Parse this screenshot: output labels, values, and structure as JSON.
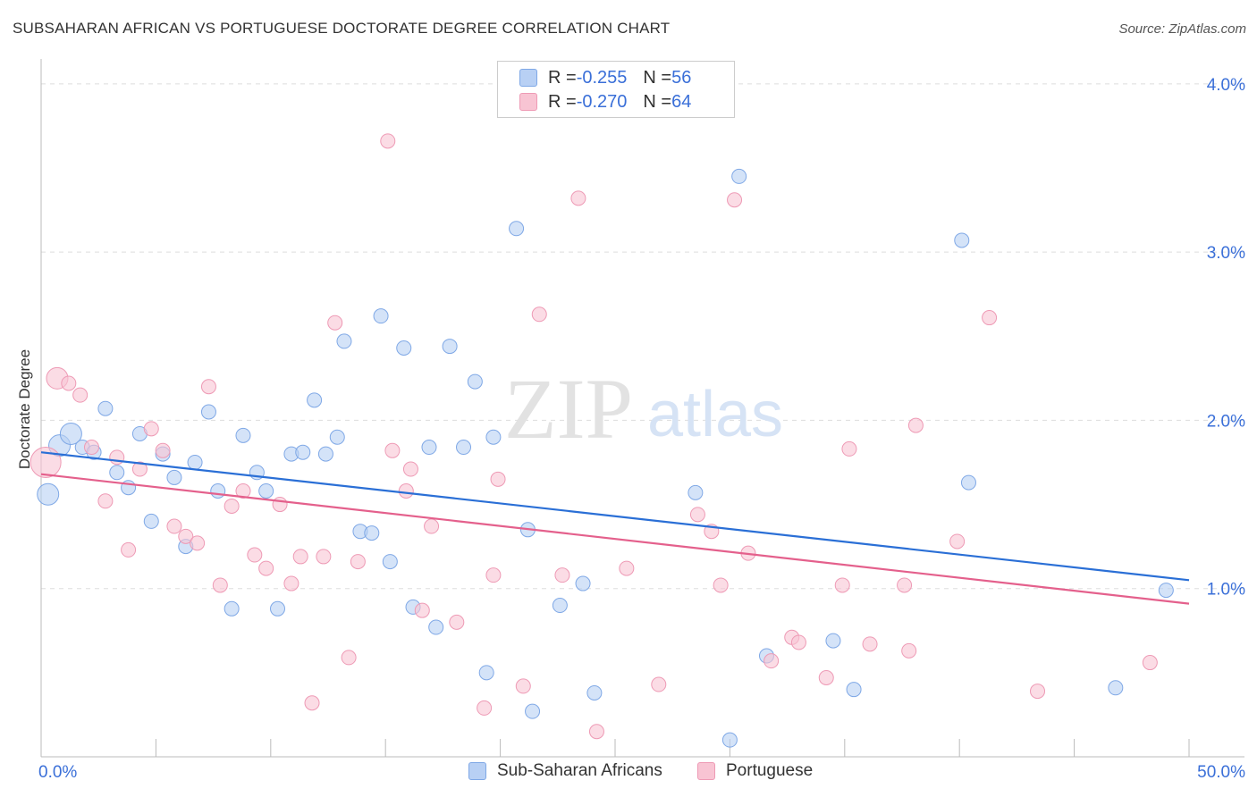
{
  "header": {
    "title": "SUBSAHARAN AFRICAN VS PORTUGUESE DOCTORATE DEGREE CORRELATION CHART",
    "source": "Source: ZipAtlas.com"
  },
  "watermark": {
    "zip": "ZIP",
    "atlas": "atlas"
  },
  "legend_top": {
    "series": [
      {
        "r_label": "R = ",
        "r_value": "-0.255",
        "n_label": "N = ",
        "n_value": "56"
      },
      {
        "r_label": "R = ",
        "r_value": "-0.270",
        "n_label": "N = ",
        "n_value": "64"
      }
    ]
  },
  "legend_bottom": {
    "items": [
      "Sub-Saharan Africans",
      "Portuguese"
    ]
  },
  "colors": {
    "blue_fill": "#b8d0f4",
    "blue_stroke": "#7fa8e6",
    "blue_line": "#2a6fd6",
    "pink_fill": "#f8c4d3",
    "pink_stroke": "#ee9ab5",
    "pink_line": "#e4608c",
    "tick_label": "#3a6fd8",
    "grid": "#dddddd"
  },
  "chart_data": {
    "type": "scatter",
    "title": "SUBSAHARAN AFRICAN VS PORTUGUESE DOCTORATE DEGREE CORRELATION CHART",
    "xlabel": "",
    "ylabel": "Doctorate Degree",
    "xlim": [
      0,
      50
    ],
    "ylim": [
      0,
      4.1
    ],
    "x_tick_labels": [
      {
        "value": 0,
        "label": "0.0%"
      },
      {
        "value": 50,
        "label": "50.0%"
      }
    ],
    "y_tick_labels": [
      {
        "value": 1,
        "label": "1.0%"
      },
      {
        "value": 2,
        "label": "2.0%"
      },
      {
        "value": 3,
        "label": "3.0%"
      },
      {
        "value": 4,
        "label": "4.0%"
      }
    ],
    "series": [
      {
        "name": "Sub-Saharan Africans",
        "color": "#b8d0f4",
        "trend": {
          "x": [
            0,
            50
          ],
          "y": [
            1.81,
            1.05
          ]
        },
        "points": [
          {
            "x": 0.3,
            "y": 1.56,
            "s": 2
          },
          {
            "x": 0.8,
            "y": 1.85,
            "s": 2
          },
          {
            "x": 1.3,
            "y": 1.92,
            "s": 2
          },
          {
            "x": 1.8,
            "y": 1.84,
            "s": 1
          },
          {
            "x": 2.3,
            "y": 1.81,
            "s": 1
          },
          {
            "x": 2.8,
            "y": 2.07,
            "s": 1
          },
          {
            "x": 3.3,
            "y": 1.69,
            "s": 1
          },
          {
            "x": 3.8,
            "y": 1.6,
            "s": 1
          },
          {
            "x": 4.3,
            "y": 1.92,
            "s": 1
          },
          {
            "x": 4.8,
            "y": 1.4,
            "s": 1
          },
          {
            "x": 5.3,
            "y": 1.8,
            "s": 1
          },
          {
            "x": 5.8,
            "y": 1.66,
            "s": 1
          },
          {
            "x": 6.3,
            "y": 1.25,
            "s": 1
          },
          {
            "x": 6.7,
            "y": 1.75,
            "s": 1
          },
          {
            "x": 7.3,
            "y": 2.05,
            "s": 1
          },
          {
            "x": 7.7,
            "y": 1.58,
            "s": 1
          },
          {
            "x": 8.3,
            "y": 0.88,
            "s": 1
          },
          {
            "x": 8.8,
            "y": 1.91,
            "s": 1
          },
          {
            "x": 9.4,
            "y": 1.69,
            "s": 1
          },
          {
            "x": 9.8,
            "y": 1.58,
            "s": 1
          },
          {
            "x": 10.3,
            "y": 0.88,
            "s": 1
          },
          {
            "x": 10.9,
            "y": 1.8,
            "s": 1
          },
          {
            "x": 11.4,
            "y": 1.81,
            "s": 1
          },
          {
            "x": 11.9,
            "y": 2.12,
            "s": 1
          },
          {
            "x": 12.4,
            "y": 1.8,
            "s": 1
          },
          {
            "x": 12.9,
            "y": 1.9,
            "s": 1
          },
          {
            "x": 13.2,
            "y": 2.47,
            "s": 1
          },
          {
            "x": 13.9,
            "y": 1.34,
            "s": 1
          },
          {
            "x": 14.4,
            "y": 1.33,
            "s": 1
          },
          {
            "x": 14.8,
            "y": 2.62,
            "s": 1
          },
          {
            "x": 15.2,
            "y": 1.16,
            "s": 1
          },
          {
            "x": 15.8,
            "y": 2.43,
            "s": 1
          },
          {
            "x": 16.2,
            "y": 0.89,
            "s": 1
          },
          {
            "x": 16.9,
            "y": 1.84,
            "s": 1
          },
          {
            "x": 17.2,
            "y": 0.77,
            "s": 1
          },
          {
            "x": 17.8,
            "y": 2.44,
            "s": 1
          },
          {
            "x": 18.4,
            "y": 1.84,
            "s": 1
          },
          {
            "x": 18.9,
            "y": 2.23,
            "s": 1
          },
          {
            "x": 19.4,
            "y": 0.5,
            "s": 1
          },
          {
            "x": 19.7,
            "y": 1.9,
            "s": 1
          },
          {
            "x": 20.7,
            "y": 3.14,
            "s": 1
          },
          {
            "x": 21.2,
            "y": 1.35,
            "s": 1
          },
          {
            "x": 21.4,
            "y": 0.27,
            "s": 1
          },
          {
            "x": 22.6,
            "y": 0.9,
            "s": 1
          },
          {
            "x": 24.1,
            "y": 0.38,
            "s": 1
          },
          {
            "x": 23.6,
            "y": 1.03,
            "s": 1
          },
          {
            "x": 28.5,
            "y": 1.57,
            "s": 1
          },
          {
            "x": 30.0,
            "y": 0.1,
            "s": 1
          },
          {
            "x": 30.4,
            "y": 3.45,
            "s": 1
          },
          {
            "x": 31.6,
            "y": 0.6,
            "s": 1
          },
          {
            "x": 34.5,
            "y": 0.69,
            "s": 1
          },
          {
            "x": 35.4,
            "y": 0.4,
            "s": 1
          },
          {
            "x": 40.1,
            "y": 3.07,
            "s": 1
          },
          {
            "x": 40.4,
            "y": 1.63,
            "s": 1
          },
          {
            "x": 46.8,
            "y": 0.41,
            "s": 1
          },
          {
            "x": 49.0,
            "y": 0.99,
            "s": 1
          }
        ]
      },
      {
        "name": "Portuguese",
        "color": "#f8c4d3",
        "trend": {
          "x": [
            0,
            50
          ],
          "y": [
            1.68,
            0.91
          ]
        },
        "points": [
          {
            "x": 0.2,
            "y": 1.75,
            "s": 3
          },
          {
            "x": 0.7,
            "y": 2.25,
            "s": 2
          },
          {
            "x": 1.2,
            "y": 2.22,
            "s": 1
          },
          {
            "x": 1.7,
            "y": 2.15,
            "s": 1
          },
          {
            "x": 2.2,
            "y": 1.84,
            "s": 1
          },
          {
            "x": 2.8,
            "y": 1.52,
            "s": 1
          },
          {
            "x": 3.3,
            "y": 1.78,
            "s": 1
          },
          {
            "x": 3.8,
            "y": 1.23,
            "s": 1
          },
          {
            "x": 4.3,
            "y": 1.71,
            "s": 1
          },
          {
            "x": 4.8,
            "y": 1.95,
            "s": 1
          },
          {
            "x": 5.3,
            "y": 1.82,
            "s": 1
          },
          {
            "x": 5.8,
            "y": 1.37,
            "s": 1
          },
          {
            "x": 6.3,
            "y": 1.31,
            "s": 1
          },
          {
            "x": 6.8,
            "y": 1.27,
            "s": 1
          },
          {
            "x": 7.3,
            "y": 2.2,
            "s": 1
          },
          {
            "x": 7.8,
            "y": 1.02,
            "s": 1
          },
          {
            "x": 8.3,
            "y": 1.49,
            "s": 1
          },
          {
            "x": 8.8,
            "y": 1.58,
            "s": 1
          },
          {
            "x": 9.3,
            "y": 1.2,
            "s": 1
          },
          {
            "x": 9.8,
            "y": 1.12,
            "s": 1
          },
          {
            "x": 10.4,
            "y": 1.5,
            "s": 1
          },
          {
            "x": 10.9,
            "y": 1.03,
            "s": 1
          },
          {
            "x": 11.3,
            "y": 1.19,
            "s": 1
          },
          {
            "x": 11.8,
            "y": 0.32,
            "s": 1
          },
          {
            "x": 12.3,
            "y": 1.19,
            "s": 1
          },
          {
            "x": 12.8,
            "y": 2.58,
            "s": 1
          },
          {
            "x": 13.4,
            "y": 0.59,
            "s": 1
          },
          {
            "x": 13.8,
            "y": 1.16,
            "s": 1
          },
          {
            "x": 15.1,
            "y": 3.66,
            "s": 1
          },
          {
            "x": 15.3,
            "y": 1.82,
            "s": 1
          },
          {
            "x": 15.9,
            "y": 1.58,
            "s": 1
          },
          {
            "x": 16.1,
            "y": 1.71,
            "s": 1
          },
          {
            "x": 16.6,
            "y": 0.87,
            "s": 1
          },
          {
            "x": 17.0,
            "y": 1.37,
            "s": 1
          },
          {
            "x": 18.1,
            "y": 0.8,
            "s": 1
          },
          {
            "x": 19.3,
            "y": 0.29,
            "s": 1
          },
          {
            "x": 19.7,
            "y": 1.08,
            "s": 1
          },
          {
            "x": 19.9,
            "y": 1.65,
            "s": 1
          },
          {
            "x": 21.0,
            "y": 0.42,
            "s": 1
          },
          {
            "x": 21.7,
            "y": 2.63,
            "s": 1
          },
          {
            "x": 22.7,
            "y": 1.08,
            "s": 1
          },
          {
            "x": 23.4,
            "y": 3.32,
            "s": 1
          },
          {
            "x": 24.2,
            "y": 0.15,
            "s": 1
          },
          {
            "x": 25.5,
            "y": 1.12,
            "s": 1
          },
          {
            "x": 26.9,
            "y": 0.43,
            "s": 1
          },
          {
            "x": 28.6,
            "y": 1.44,
            "s": 1
          },
          {
            "x": 29.2,
            "y": 1.34,
            "s": 1
          },
          {
            "x": 29.6,
            "y": 1.02,
            "s": 1
          },
          {
            "x": 30.2,
            "y": 3.31,
            "s": 1
          },
          {
            "x": 30.8,
            "y": 1.21,
            "s": 1
          },
          {
            "x": 31.8,
            "y": 0.57,
            "s": 1
          },
          {
            "x": 32.7,
            "y": 0.71,
            "s": 1
          },
          {
            "x": 33.0,
            "y": 0.68,
            "s": 1
          },
          {
            "x": 34.2,
            "y": 0.47,
            "s": 1
          },
          {
            "x": 34.9,
            "y": 1.02,
            "s": 1
          },
          {
            "x": 35.2,
            "y": 1.83,
            "s": 1
          },
          {
            "x": 36.1,
            "y": 0.67,
            "s": 1
          },
          {
            "x": 37.6,
            "y": 1.02,
            "s": 1
          },
          {
            "x": 37.8,
            "y": 0.63,
            "s": 1
          },
          {
            "x": 38.1,
            "y": 1.97,
            "s": 1
          },
          {
            "x": 39.9,
            "y": 1.28,
            "s": 1
          },
          {
            "x": 41.3,
            "y": 2.61,
            "s": 1
          },
          {
            "x": 43.4,
            "y": 0.39,
            "s": 1
          },
          {
            "x": 48.3,
            "y": 0.56,
            "s": 1
          }
        ]
      }
    ]
  }
}
